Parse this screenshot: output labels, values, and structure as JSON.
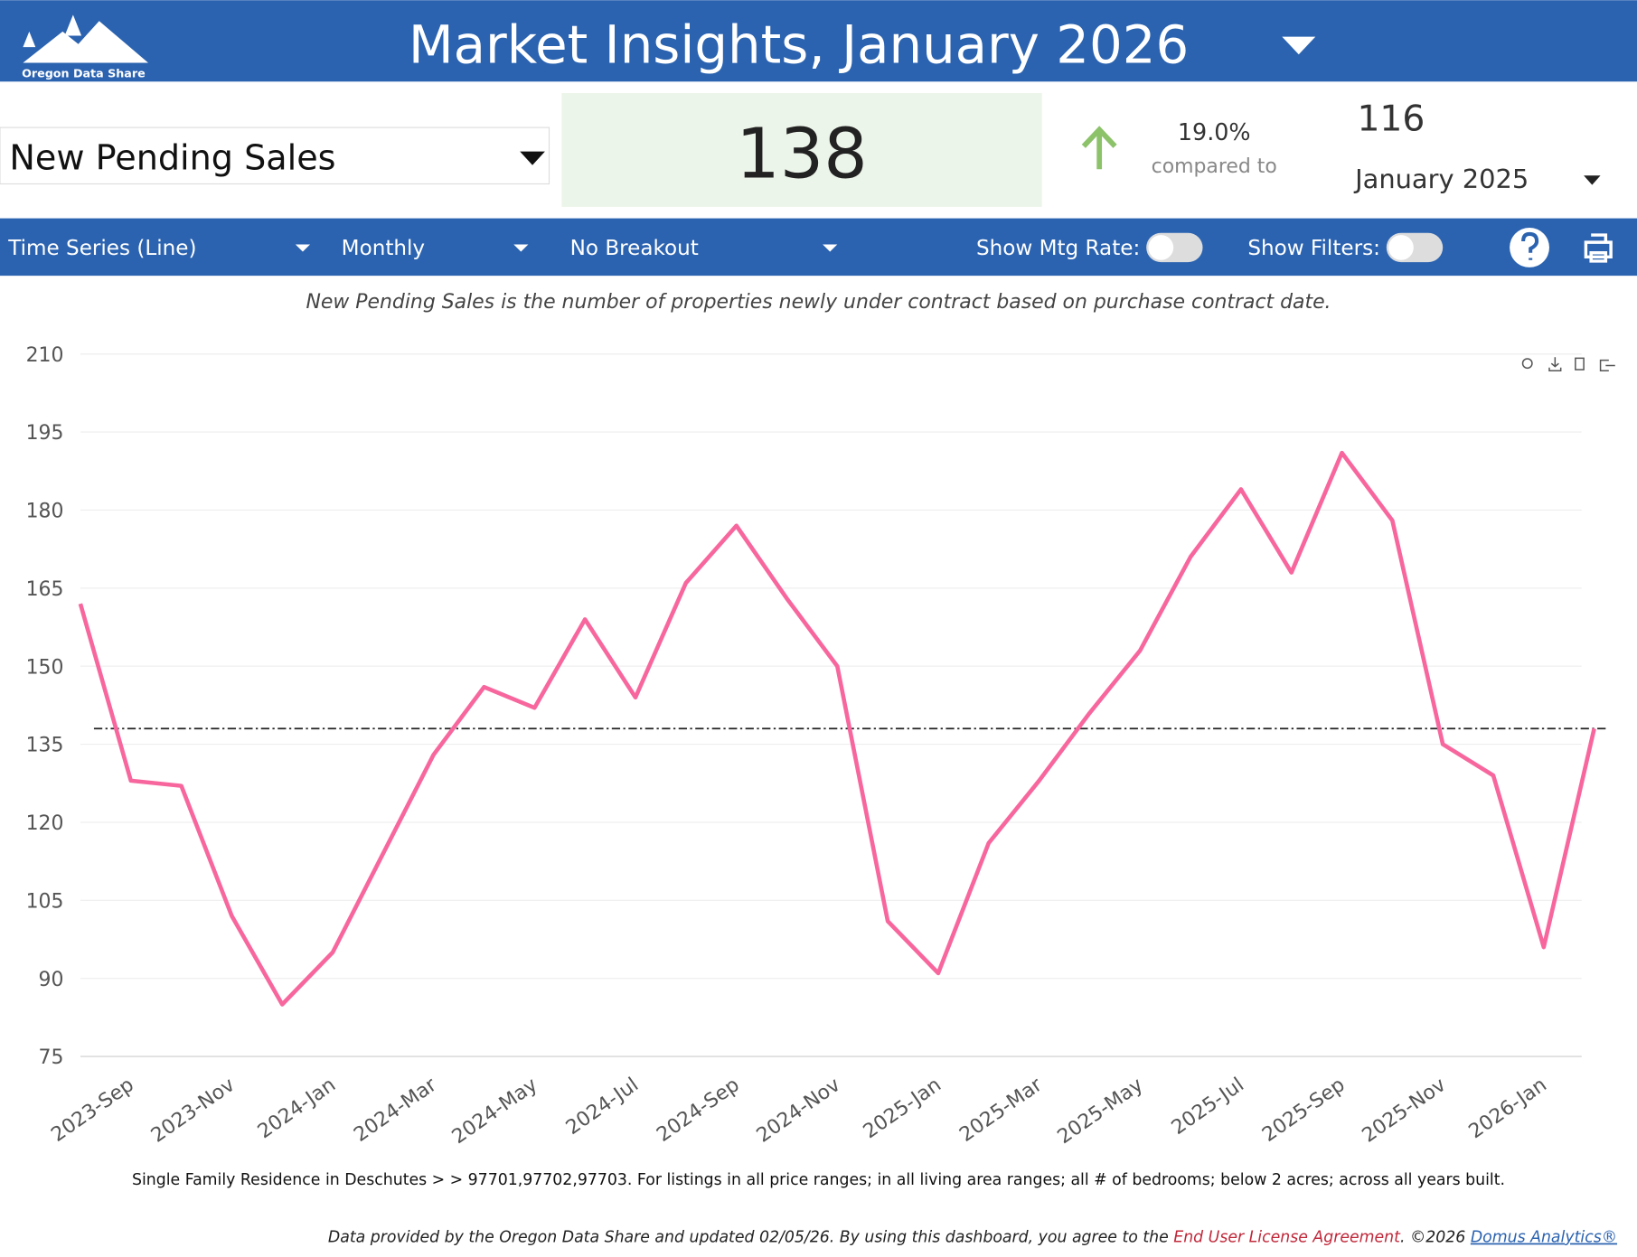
{
  "header": {
    "logo_text": "Oregon Data Share",
    "title": "Market Insights, January 2026"
  },
  "metric": {
    "selector": "New Pending Sales",
    "value": "138",
    "change": "19.0%",
    "compared_label": "compared to",
    "compare_value": "116",
    "compare_period": "January 2025"
  },
  "toolbar": {
    "chart_type": "Time Series (Line)",
    "frequency": "Monthly",
    "breakout": "No Breakout",
    "mtg_rate_label": "Show Mtg Rate:",
    "filters_label": "Show Filters:"
  },
  "description": "New Pending Sales is the number of properties newly under contract based on purchase contract date.",
  "chart_data": {
    "type": "line",
    "categories": [
      null,
      "2023-Sep",
      null,
      "2023-Nov",
      null,
      "2024-Jan",
      null,
      "2024-Mar",
      null,
      "2024-May",
      null,
      "2024-Jul",
      null,
      "2024-Sep",
      null,
      "2024-Nov",
      null,
      "2025-Jan",
      null,
      "2025-Mar",
      null,
      "2025-May",
      null,
      "2025-Jul",
      null,
      "2025-Sep",
      null,
      "2025-Nov",
      null,
      "2026-Jan",
      null
    ],
    "values": [
      162,
      128,
      127,
      102,
      85,
      95,
      114,
      133,
      146,
      142,
      159,
      144,
      166,
      177,
      163,
      150,
      101,
      91,
      116,
      128,
      141,
      153,
      171,
      184,
      168,
      191,
      178,
      135,
      129,
      96,
      138
    ],
    "color": "#f7679e",
    "reference_value": 138,
    "ylim": [
      75,
      210
    ],
    "yticks": [
      75,
      90,
      105,
      120,
      135,
      150,
      165,
      180,
      195,
      210
    ],
    "grid": true
  },
  "footnote": "Single Family Residence in Deschutes > > 97701,97702,97703. For listings in all price ranges; in all living area ranges; all # of bedrooms; below 2 acres; across all years built.",
  "footer": {
    "text": "Data provided by the Oregon Data Share and updated 02/05/26.  By using this dashboard, you agree to the ",
    "license": "End User License Agreement",
    "copyright": ".  ©2026 ",
    "company": "Domus Analytics®"
  }
}
